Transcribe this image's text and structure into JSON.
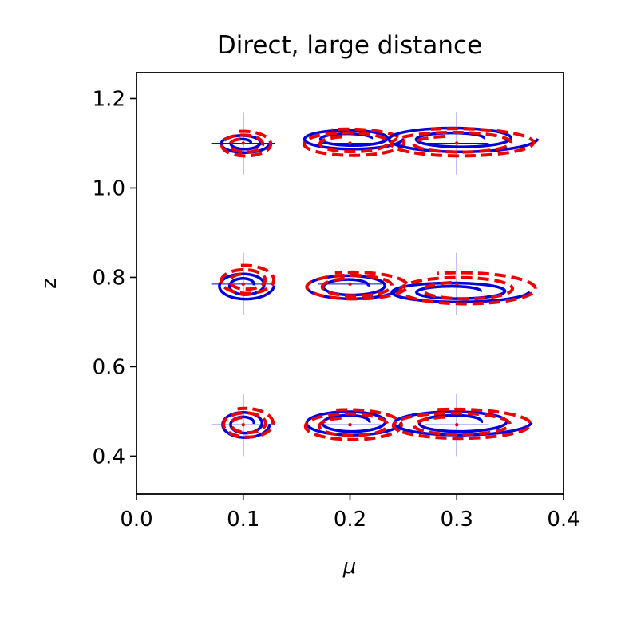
{
  "chart_data": {
    "type": "scatter",
    "title": "Direct,  large distance",
    "xlabel": "μ",
    "ylabel": "z",
    "xlim": [
      0.0,
      0.4
    ],
    "ylim": [
      0.315,
      1.258
    ],
    "xticks": [
      "0.0",
      "0.1",
      "0.2",
      "0.3",
      "0.4"
    ],
    "yticks": [
      "0.4",
      "0.6",
      "0.8",
      "1.0",
      "1.2"
    ],
    "xtick_values": [
      0.0,
      0.1,
      0.2,
      0.3,
      0.4
    ],
    "ytick_values": [
      0.4,
      0.6,
      0.8,
      1.0,
      1.2
    ],
    "grid": false,
    "colors": {
      "solid": "#0000dd",
      "dashed": "#ee0000",
      "crosshair": "#0000dd"
    },
    "groups": [
      {
        "mu": 0.1,
        "z": 1.1,
        "solid": {
          "cx": 0.1,
          "cy": 1.1,
          "inner": [
            0.007,
            0.007
          ],
          "outer": [
            0.025,
            0.023
          ]
        },
        "dashed": {
          "cx": 0.101,
          "cy": 1.097,
          "inner": [
            0.012,
            0.013
          ],
          "outer": [
            0.027,
            0.03
          ]
        }
      },
      {
        "mu": 0.2,
        "z": 1.1,
        "solid": {
          "cx": 0.2,
          "cy": 1.11,
          "inner": [
            0.02,
            0.009
          ],
          "outer": [
            0.05,
            0.025
          ]
        },
        "dashed": {
          "cx": 0.2,
          "cy": 1.1,
          "inner": [
            0.025,
            0.015
          ],
          "outer": [
            0.055,
            0.032
          ]
        }
      },
      {
        "mu": 0.3,
        "z": 1.1,
        "solid": {
          "cx": 0.3,
          "cy": 1.11,
          "inner": [
            0.025,
            0.01
          ],
          "outer": [
            0.076,
            0.032
          ]
        },
        "dashed": {
          "cx": 0.3,
          "cy": 1.1,
          "inner": [
            0.036,
            0.016
          ],
          "outer": [
            0.078,
            0.033
          ]
        }
      },
      {
        "mu": 0.1,
        "z": 0.785,
        "solid": {
          "cx": 0.101,
          "cy": 0.782,
          "inner": [
            0.009,
            0.013
          ],
          "outer": [
            0.028,
            0.033
          ]
        },
        "dashed": {
          "cx": 0.102,
          "cy": 0.793,
          "inner": [
            0.013,
            0.015
          ],
          "outer": [
            0.029,
            0.034
          ]
        }
      },
      {
        "mu": 0.2,
        "z": 0.785,
        "solid": {
          "cx": 0.2,
          "cy": 0.78,
          "inner": [
            0.017,
            0.013
          ],
          "outer": [
            0.048,
            0.03
          ]
        },
        "dashed": {
          "cx": 0.203,
          "cy": 0.78,
          "inner": [
            0.026,
            0.018
          ],
          "outer": [
            0.055,
            0.032
          ]
        }
      },
      {
        "mu": 0.3,
        "z": 0.785,
        "solid": {
          "cx": 0.298,
          "cy": 0.768,
          "inner": [
            0.024,
            0.01
          ],
          "outer": [
            0.07,
            0.025
          ]
        },
        "dashed": {
          "cx": 0.305,
          "cy": 0.773,
          "inner": [
            0.032,
            0.016
          ],
          "outer": [
            0.075,
            0.038
          ]
        }
      },
      {
        "mu": 0.1,
        "z": 0.47,
        "solid": {
          "cx": 0.101,
          "cy": 0.472,
          "inner": [
            0.009,
            0.013
          ],
          "outer": [
            0.024,
            0.033
          ]
        },
        "dashed": {
          "cx": 0.103,
          "cy": 0.472,
          "inner": [
            0.013,
            0.015
          ],
          "outer": [
            0.027,
            0.035
          ]
        }
      },
      {
        "mu": 0.2,
        "z": 0.47,
        "solid": {
          "cx": 0.2,
          "cy": 0.475,
          "inner": [
            0.018,
            0.014
          ],
          "outer": [
            0.048,
            0.03
          ]
        },
        "dashed": {
          "cx": 0.2,
          "cy": 0.468,
          "inner": [
            0.026,
            0.018
          ],
          "outer": [
            0.052,
            0.036
          ]
        }
      },
      {
        "mu": 0.3,
        "z": 0.47,
        "solid": {
          "cx": 0.3,
          "cy": 0.475,
          "inner": [
            0.023,
            0.014
          ],
          "outer": [
            0.07,
            0.03
          ]
        },
        "dashed": {
          "cx": 0.3,
          "cy": 0.47,
          "inner": [
            0.036,
            0.018
          ],
          "outer": [
            0.075,
            0.035
          ]
        }
      }
    ]
  }
}
